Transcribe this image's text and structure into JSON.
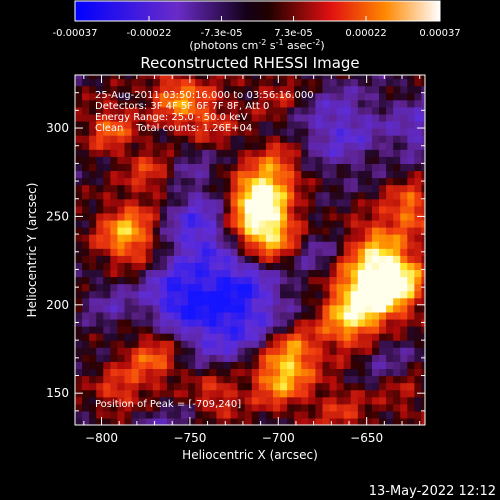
{
  "colorbar": {
    "tick_labels": [
      "-0.00037",
      "-0.00022",
      "-7.3e-05",
      "7.3e-05",
      "0.00022",
      "0.00037"
    ],
    "range": [
      -0.00037,
      0.00037
    ],
    "unit_main": "(photons cm",
    "unit_exp1": "-2",
    "unit_mid": " s",
    "unit_exp2": "-1",
    "unit_mid2": " asec",
    "unit_exp3": "-2",
    "unit_close": ")"
  },
  "chart_data": {
    "type": "heatmap",
    "title": "Reconstructed RHESSI Image",
    "xlabel": "Heliocentric X (arcsec)",
    "ylabel": "Heliocentric Y (arcsec)",
    "xlim": [
      -815,
      -617
    ],
    "ylim": [
      132,
      330
    ],
    "x_ticks": [
      -800,
      -750,
      -700,
      -650
    ],
    "y_ticks": [
      150,
      200,
      250,
      300
    ],
    "x_tick_labels": [
      "−800",
      "−750",
      "−700",
      "−650"
    ],
    "y_tick_labels": [
      "150",
      "200",
      "250",
      "300"
    ],
    "annotations": [
      "25-Aug-2011 03:50:16.000 to 03:56:16.000",
      "Detectors: 3F 4F 5F 6F 7F 8F, Att 0",
      "Energy Range: 25.0 - 50.0 keV",
      "Clean    Total counts: 1.26E+04"
    ],
    "peak_label": "Position of Peak = [-709,240]",
    "peak_position": [
      -709,
      240
    ],
    "colormap": "blue-purple-black-red-yellow-white"
  },
  "footer": {
    "date": "13-May-2022 12:12"
  }
}
